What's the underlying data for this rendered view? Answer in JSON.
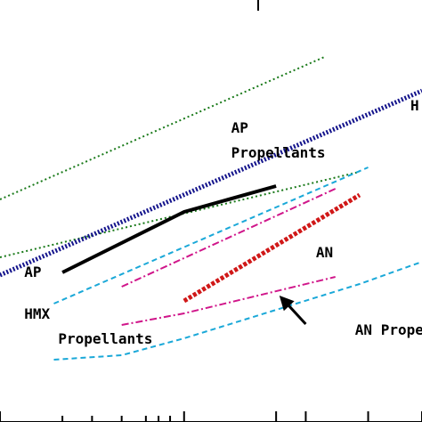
{
  "chart_data": {
    "type": "line",
    "title": "",
    "xlabel": "",
    "ylabel": "",
    "x_scale": "log",
    "xlim": [
      1,
      24
    ],
    "ylim": [
      0,
      474
    ],
    "grid": false,
    "legend": "none",
    "series": [
      {
        "key": "ap-upper-bound",
        "color": "#1a7a1a",
        "dash": "2,3",
        "width": 2,
        "x": [
          1,
          11.5
        ],
        "y": [
          250,
          410
        ]
      },
      {
        "key": "ap-lower-bound",
        "color": "#1a7a1a",
        "dash": "2,3",
        "width": 2,
        "x": [
          1,
          15
        ],
        "y": [
          185,
          281
        ]
      },
      {
        "key": "hmx-trend-blue",
        "color": "#14148c",
        "dash": "2,2",
        "width": 5,
        "x": [
          1,
          24
        ],
        "y": [
          165,
          372
        ]
      },
      {
        "key": "ap-black",
        "color": "#000000",
        "dash": "",
        "width": 4,
        "x": [
          1.6,
          4,
          8
        ],
        "y": [
          168,
          236,
          265
        ]
      },
      {
        "key": "magenta-upper",
        "color": "#d0168a",
        "dash": "8,3,2,3",
        "width": 2,
        "x": [
          2.5,
          12.5
        ],
        "y": [
          152,
          262
        ]
      },
      {
        "key": "cyan-upper",
        "color": "#1aa8d8",
        "dash": "6,4",
        "width": 2,
        "x": [
          1.5,
          16
        ],
        "y": [
          133,
          286
        ]
      },
      {
        "key": "an-red",
        "color": "#d01818",
        "dash": "4,2",
        "width": 5,
        "x": [
          4,
          15
        ],
        "y": [
          136,
          255
        ]
      },
      {
        "key": "magenta-lower",
        "color": "#d0168a",
        "dash": "8,3,2,3",
        "width": 2,
        "x": [
          2.5,
          4,
          12.5
        ],
        "y": [
          109,
          122,
          163
        ]
      },
      {
        "key": "cyan-lower",
        "color": "#1aa8d8",
        "dash": "6,4",
        "width": 2,
        "x": [
          1.5,
          2.5,
          4,
          15,
          24
        ],
        "y": [
          70,
          75,
          94,
          155,
          180
        ]
      }
    ],
    "annotations": [
      {
        "key": "ap-propellants-1",
        "text": "AP",
        "x": 5.7,
        "y": 325
      },
      {
        "key": "ap-propellants-2",
        "text": "Propellants",
        "x": 5.7,
        "y": 297
      },
      {
        "key": "h-label",
        "text": "H",
        "x": 22,
        "y": 350
      },
      {
        "key": "ap-label",
        "text": "AP",
        "x": 1.2,
        "y": 163
      },
      {
        "key": "an-label",
        "text": "AN",
        "x": 10.8,
        "y": 185
      },
      {
        "key": "hmx-propellants-1",
        "text": "HMX",
        "x": 1.2,
        "y": 116
      },
      {
        "key": "hmx-propellants-2",
        "text": "Propellants",
        "x": 1.55,
        "y": 88
      },
      {
        "key": "an-prope",
        "text": "AN Prope",
        "x": 14.5,
        "y": 98
      }
    ],
    "arrow": {
      "from": [
        10,
        110
      ],
      "to": [
        8.2,
        142
      ]
    },
    "axis_ticks": {
      "x_major": [
        1,
        4,
        8,
        10,
        16,
        24
      ],
      "x_minor": [
        1.6,
        2,
        2.5,
        3,
        3.3,
        3.6
      ]
    }
  }
}
